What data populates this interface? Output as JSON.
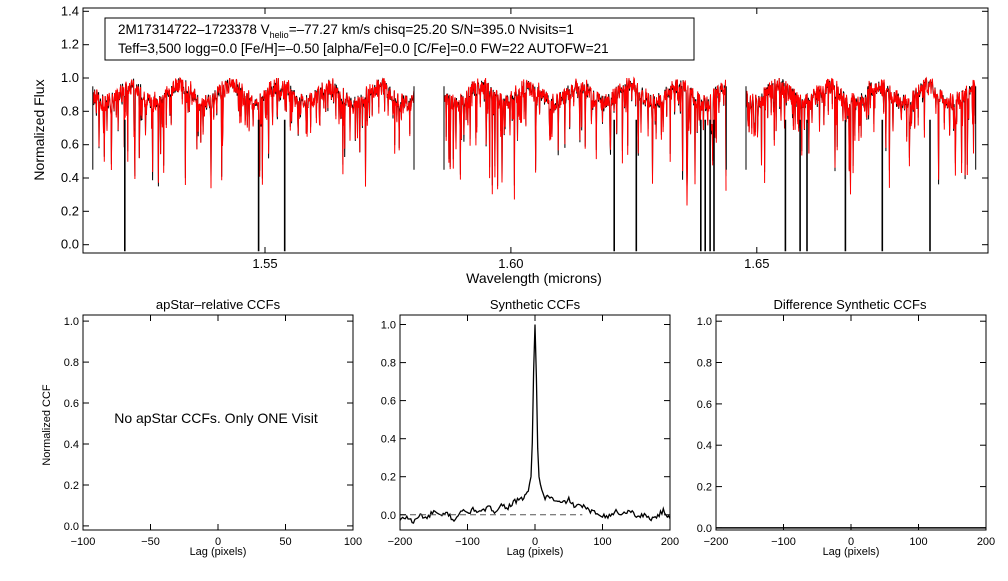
{
  "chart_data": [
    {
      "type": "line",
      "panel": "spectrum",
      "xlabel": "Wavelength (microns)",
      "ylabel": "Normalized Flux",
      "xlim": [
        1.513,
        1.697
      ],
      "ylim": [
        -0.05,
        1.42
      ],
      "xticks": [
        1.55,
        1.6,
        1.65
      ],
      "xtick_labels": [
        "1.55",
        "1.60",
        "1.65"
      ],
      "yticks": [
        0.0,
        0.2,
        0.4,
        0.6,
        0.8,
        1.0,
        1.2,
        1.4
      ],
      "ytick_labels": [
        "0.0",
        "0.2",
        "0.4",
        "0.6",
        "0.8",
        "1.0",
        "1.2",
        "1.4"
      ],
      "info_line1": {
        "star": "2M17314722–1723378",
        "v_main": "V",
        "v_sub": "helio",
        "rest": "=–77.27 km/s  chisq=25.20  S/N=395.0  Nvisits=1"
      },
      "info_line2": "Teff=3,500 logg=0.0 [Fe/H]=–0.50 [alpha/Fe]=0.0 [C/Fe]=0.0 FW=22 AUTOFW=21",
      "chips": [
        [
          1.515,
          1.5803
        ],
        [
          1.5864,
          1.6438
        ],
        [
          1.6478,
          1.6945
        ]
      ],
      "telluric_lines": [
        1.5215,
        1.5487,
        1.554,
        1.621,
        1.6255,
        1.6386,
        1.6395,
        1.6405,
        1.6413,
        1.6558,
        1.6588,
        1.6602,
        1.668,
        1.6755,
        1.6852
      ],
      "series": [
        {
          "name": "observed",
          "color": "#000000"
        },
        {
          "name": "model",
          "color": "#ff0000"
        }
      ]
    },
    {
      "type": "line",
      "panel": "apstar-ccf",
      "title": "apStar–relative CCFs",
      "xlabel": "Lag (pixels)",
      "ylabel": "Normalized CCF",
      "xlim": [
        -100,
        100
      ],
      "ylim": [
        -0.02,
        1.03
      ],
      "xticks": [
        -100,
        -50,
        0,
        50,
        100
      ],
      "xtick_labels": [
        "−100",
        "−50",
        "0",
        "50",
        "100"
      ],
      "yticks": [
        0.0,
        0.2,
        0.4,
        0.6,
        0.8,
        1.0
      ],
      "ytick_labels": [
        "0.0",
        "0.2",
        "0.4",
        "0.6",
        "0.8",
        "1.0"
      ],
      "message": "No apStar CCFs.  Only ONE Visit",
      "series": []
    },
    {
      "type": "line",
      "panel": "synthetic-ccf",
      "title": "Synthetic CCFs",
      "xlabel": "Lag (pixels)",
      "xlim": [
        -200,
        200
      ],
      "ylim": [
        -0.08,
        1.05
      ],
      "xticks": [
        -200,
        -100,
        0,
        100,
        200
      ],
      "xtick_labels": [
        "−200",
        "−100",
        "0",
        "100",
        "200"
      ],
      "yticks": [
        0.0,
        0.2,
        0.4,
        0.6,
        0.8,
        1.0
      ],
      "ytick_labels": [
        "0.0",
        "0.2",
        "0.4",
        "0.6",
        "0.8",
        "1.0"
      ],
      "series": [
        {
          "name": "ccf",
          "color": "#000000",
          "x": [
            -200,
            -190,
            -180,
            -170,
            -160,
            -150,
            -140,
            -130,
            -120,
            -110,
            -100,
            -90,
            -80,
            -70,
            -60,
            -50,
            -40,
            -30,
            -20,
            -15,
            -10,
            -6,
            -4,
            -2,
            0,
            2,
            4,
            6,
            10,
            15,
            20,
            30,
            40,
            50,
            60,
            70,
            80,
            90,
            100,
            110,
            120,
            130,
            140,
            150,
            160,
            170,
            180,
            190,
            200
          ],
          "y": [
            -0.03,
            -0.01,
            -0.04,
            0.0,
            -0.02,
            0.02,
            -0.01,
            0.01,
            -0.03,
            0.02,
            0.01,
            0.03,
            0.01,
            0.04,
            0.02,
            0.05,
            0.04,
            0.07,
            0.08,
            0.1,
            0.13,
            0.2,
            0.38,
            0.75,
            1.0,
            0.72,
            0.35,
            0.2,
            0.12,
            0.09,
            0.1,
            0.07,
            0.06,
            0.08,
            0.04,
            0.05,
            0.02,
            0.01,
            0.0,
            -0.01,
            0.02,
            0.0,
            0.03,
            -0.01,
            0.0,
            -0.02,
            -0.01,
            0.02,
            -0.02
          ]
        },
        {
          "name": "zero",
          "color": "#555555",
          "dashed": true,
          "x": [
            -200,
            70
          ],
          "y": [
            0,
            0
          ]
        }
      ]
    },
    {
      "type": "line",
      "panel": "difference-ccf",
      "title": "Difference Synthetic CCFs",
      "xlabel": "Lag (pixels)",
      "xlim": [
        -200,
        200
      ],
      "ylim": [
        -0.01,
        1.03
      ],
      "xticks": [
        -200,
        -100,
        0,
        100,
        200
      ],
      "xtick_labels": [
        "−200",
        "−100",
        "0",
        "100",
        "200"
      ],
      "yticks": [
        0.0,
        0.2,
        0.4,
        0.6,
        0.8,
        1.0
      ],
      "ytick_labels": [
        "0.0",
        "0.2",
        "0.4",
        "0.6",
        "0.8",
        "1.0"
      ],
      "series": [
        {
          "name": "difference",
          "color": "#000000",
          "x": [
            -200,
            200
          ],
          "y": [
            0,
            0
          ]
        }
      ]
    }
  ]
}
